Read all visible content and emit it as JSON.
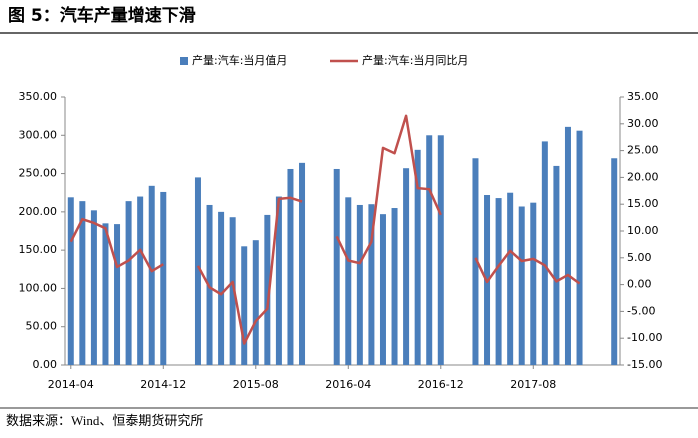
{
  "title": "图 5：汽车产量增速下滑",
  "source": "数据来源：Wind、恒泰期货研究所",
  "chart_data": {
    "type": "bar_line",
    "categories": [
      "2014-04",
      null,
      null,
      null,
      null,
      null,
      null,
      null,
      "2014-12",
      null,
      null,
      null,
      null,
      null,
      null,
      null,
      "2015-08",
      null,
      null,
      null,
      null,
      null,
      null,
      null,
      "2016-04",
      null,
      null,
      null,
      null,
      null,
      null,
      null,
      "2016-12",
      null,
      null,
      null,
      null,
      null,
      null,
      null,
      "2017-08",
      null,
      null,
      null,
      null,
      null,
      null,
      null
    ],
    "series": [
      {
        "name": "产量:汽车:当月值月",
        "color": "#4a7ebb",
        "type": "bar",
        "axis": "y",
        "values": [
          219,
          214,
          202,
          185,
          184,
          214,
          220,
          234,
          226,
          null,
          null,
          245,
          209,
          200,
          193,
          155,
          163,
          196,
          220,
          256,
          264,
          null,
          null,
          256,
          219,
          209,
          210,
          197,
          205,
          257,
          281,
          300,
          300,
          null,
          null,
          270,
          222,
          218,
          225,
          207,
          212,
          292,
          260,
          311,
          306,
          null,
          null,
          270
        ]
      },
      {
        "name": "产量:汽车:当月同比月",
        "color": "#c0504d",
        "type": "line",
        "axis": "y2",
        "values": [
          8,
          12.2,
          11.5,
          10.5,
          3.3,
          4.5,
          6.5,
          2.5,
          3.8,
          null,
          null,
          3.5,
          -0.5,
          -1.8,
          0.5,
          -11,
          -6.8,
          -4.5,
          16,
          16.2,
          15.5,
          null,
          null,
          9,
          4.5,
          4,
          8,
          25.5,
          24.5,
          31.5,
          18,
          17.8,
          13,
          null,
          null,
          5,
          0.5,
          3.5,
          6.3,
          4.4,
          4.8,
          3.6,
          0.6,
          1.8,
          0.2,
          null,
          null,
          0.8
        ]
      }
    ],
    "ylim": [
      0,
      350
    ],
    "yticks": [
      {
        "value": 0,
        "label": "0.00"
      },
      {
        "value": 50,
        "label": "50.00"
      },
      {
        "value": 100,
        "label": "100.00"
      },
      {
        "value": 150,
        "label": "150.00"
      },
      {
        "value": 200,
        "label": "200.00"
      },
      {
        "value": 250,
        "label": "250.00"
      },
      {
        "value": 300,
        "label": "300.00"
      },
      {
        "value": 350,
        "label": "350.00"
      }
    ],
    "y2lim": [
      -15,
      35
    ],
    "y2ticks": [
      {
        "value": -15,
        "label": "-15.00"
      },
      {
        "value": -10,
        "label": "-10.00"
      },
      {
        "value": -5,
        "label": "-5.00"
      },
      {
        "value": 0,
        "label": "0.00"
      },
      {
        "value": 5,
        "label": "5.00"
      },
      {
        "value": 10,
        "label": "10.00"
      },
      {
        "value": 15,
        "label": "15.00"
      },
      {
        "value": 20,
        "label": "20.00"
      },
      {
        "value": 25,
        "label": "25.00"
      },
      {
        "value": 30,
        "label": "30.00"
      },
      {
        "value": 35,
        "label": "35.00"
      }
    ],
    "legend": "top"
  }
}
